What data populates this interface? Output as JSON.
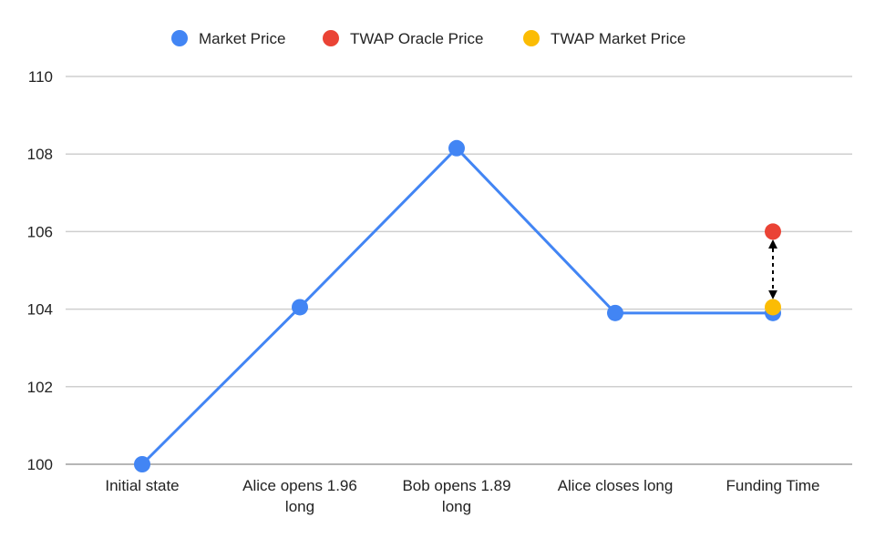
{
  "chart_data": {
    "type": "line",
    "categories": [
      [
        "Initial state"
      ],
      [
        "Alice opens 1.96",
        "long"
      ],
      [
        "Bob opens 1.89",
        "long"
      ],
      [
        "Alice closes long"
      ],
      [
        "Funding Time"
      ]
    ],
    "series": [
      {
        "name": "Market Price",
        "color": "#4285f4",
        "values": [
          100,
          104.05,
          108.15,
          103.9,
          103.9
        ],
        "line": true
      },
      {
        "name": "TWAP Oracle Price",
        "color": "#ea4335",
        "points": [
          {
            "x": 4,
            "y": 106
          }
        ]
      },
      {
        "name": "TWAP Market Price",
        "color": "#fbbc04",
        "points": [
          {
            "x": 4,
            "y": 104.05
          }
        ]
      }
    ],
    "annotations": [
      {
        "type": "double-arrow",
        "x": 4,
        "from": 105.75,
        "to": 104.3,
        "style": "dashed",
        "color": "#000000"
      }
    ],
    "yticks": [
      100,
      102,
      104,
      106,
      108,
      110
    ],
    "ylim": [
      100,
      110
    ],
    "grid": true,
    "legend_position": "top-center"
  }
}
